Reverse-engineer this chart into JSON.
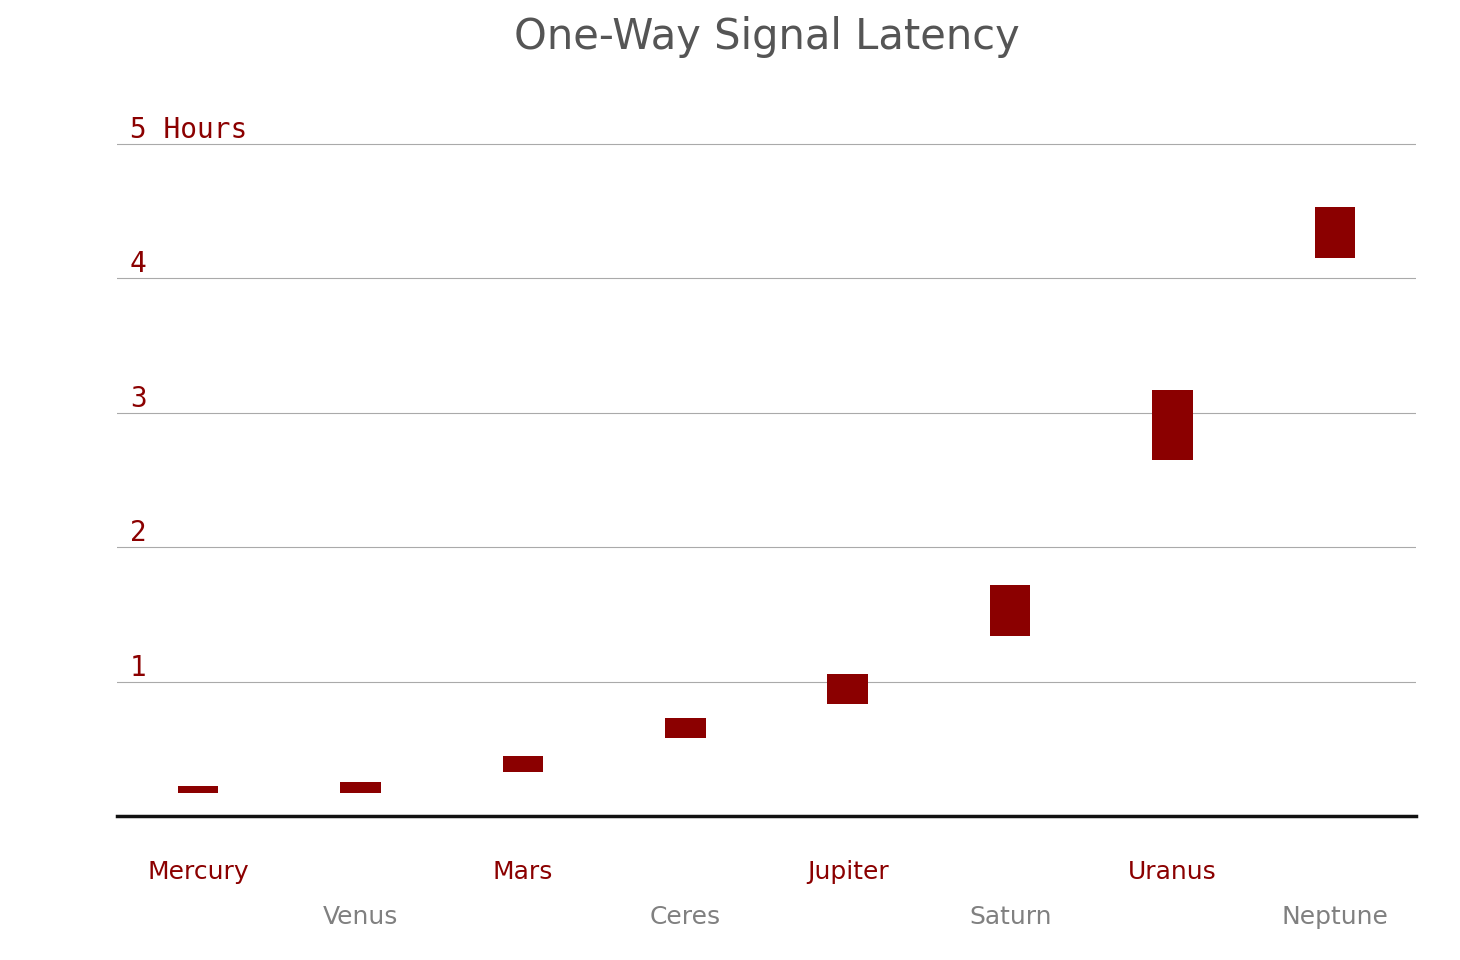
{
  "title": "One-Way Signal Latency",
  "planets": [
    "Mercury",
    "Venus",
    "Mars",
    "Ceres",
    "Jupiter",
    "Saturn",
    "Uranus",
    "Neptune"
  ],
  "planet_colors": [
    "#8B0000",
    "#808080",
    "#8B0000",
    "#808080",
    "#8B0000",
    "#808080",
    "#8B0000",
    "#808080"
  ],
  "bar_min": [
    0.17,
    0.17,
    0.33,
    0.58,
    0.83,
    1.34,
    2.65,
    4.15
  ],
  "bar_max": [
    0.22,
    0.25,
    0.45,
    0.73,
    1.06,
    1.72,
    3.17,
    4.53
  ],
  "bar_color": "#8B0000",
  "yticks": [
    1,
    2,
    3,
    4,
    5
  ],
  "ytick_labels": [
    "1",
    "2",
    "3",
    "4",
    "5 Hours"
  ],
  "ytick_color": "#8B0000",
  "ylim": [
    0,
    5.5
  ],
  "background_color": "#ffffff",
  "title_color": "#555555",
  "title_fontsize": 30,
  "bar_width": 0.25,
  "grid_color": "#aaaaaa",
  "label_fontsize": 18,
  "ytick_fontsize": 20
}
